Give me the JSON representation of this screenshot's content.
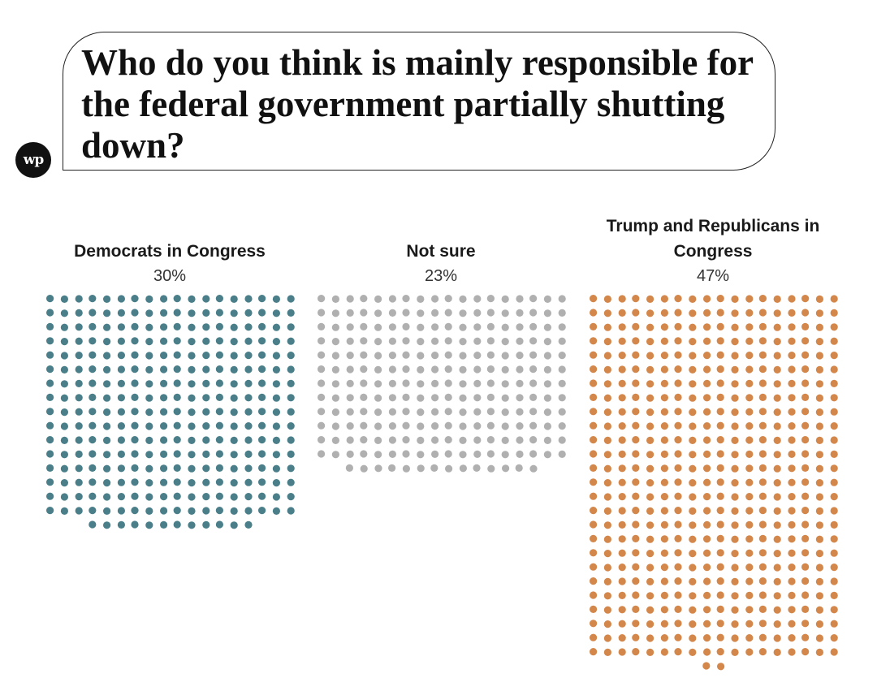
{
  "logo_text": "wp",
  "chart_data": {
    "type": "waffle",
    "title": "Who do you think is mainly responsible for the federal government partially shutting down?",
    "unit": "%",
    "categories": [
      "Democrats in Congress",
      "Not sure",
      "Trump and Republicans in Congress"
    ],
    "values": [
      30,
      23,
      47
    ],
    "colors": [
      "#4a7f8a",
      "#b0b0b0",
      "#d4874a"
    ],
    "legend": "none",
    "grid": false
  }
}
